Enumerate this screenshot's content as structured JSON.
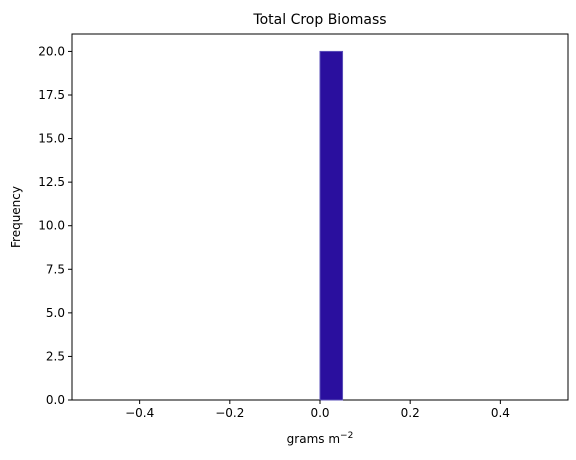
{
  "chart_data": {
    "type": "bar",
    "title": "Total Crop Biomass",
    "xlabel": "grams m",
    "xlabel_superscript": "−2",
    "ylabel": "Frequency",
    "xlim": [
      -0.55,
      0.55
    ],
    "ylim": [
      0,
      21
    ],
    "xticks": [
      -0.4,
      -0.2,
      0.0,
      0.2,
      0.4
    ],
    "xtick_labels": [
      "−0.4",
      "−0.2",
      "0.0",
      "0.2",
      "0.4"
    ],
    "yticks": [
      0,
      2.5,
      5,
      7.5,
      10,
      12.5,
      15,
      17.5,
      20
    ],
    "ytick_labels": [
      "0.0",
      "2.5",
      "5.0",
      "7.5",
      "10.0",
      "12.5",
      "15.0",
      "17.5",
      "20.0"
    ],
    "bins": [
      {
        "x0": 0.0,
        "x1": 0.05,
        "count": 20
      }
    ],
    "bar_color": "#2a0f9e",
    "bar_edge_color": "#5a4fb8",
    "grid": false
  }
}
